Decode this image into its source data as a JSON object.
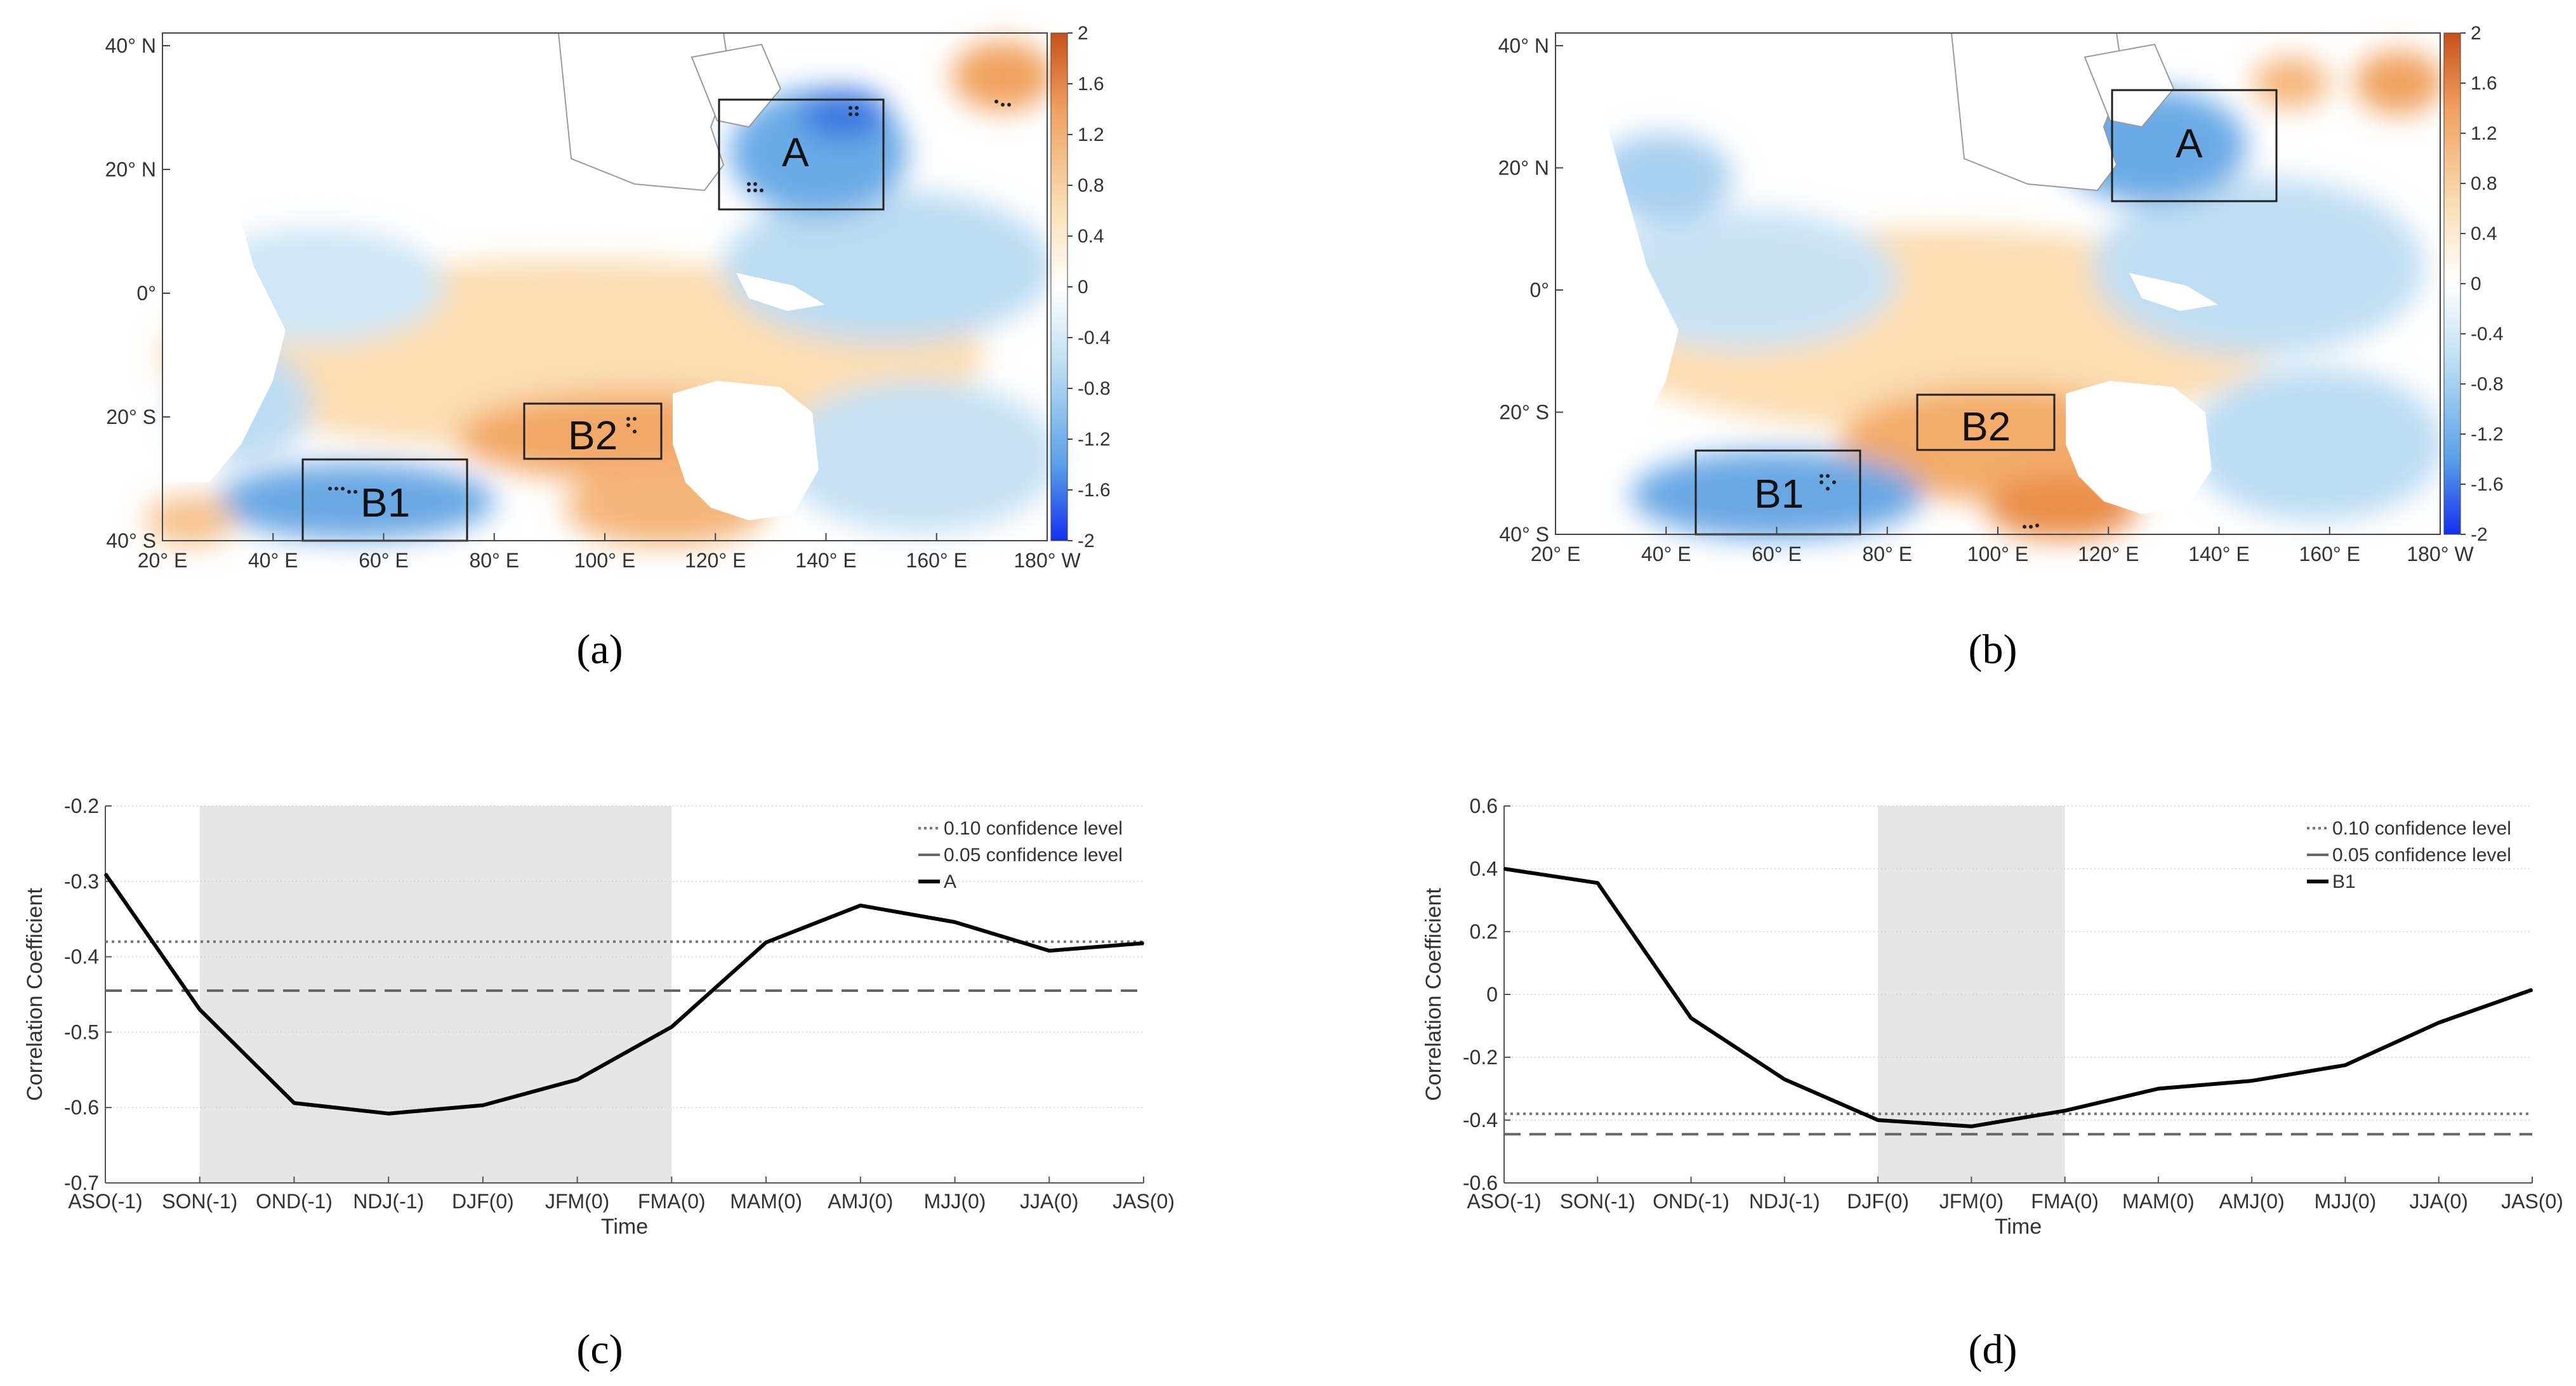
{
  "colors": {
    "line": "#000000",
    "shade": "#e6e6e6",
    "dotted": "#777777",
    "dashed": "#666666",
    "ocean_blue": "#5aa0e0",
    "ocean_orange": "#f4b070",
    "colorbar_low": "#1b3cf5",
    "colorbar_high": "#d8561a"
  },
  "maps": [
    {
      "id": "a",
      "panel_label": "(a)",
      "lon_ticks": [
        "20° E",
        "40° E",
        "60° E",
        "80° E",
        "100° E",
        "120° E",
        "140° E",
        "160° E",
        "180° W"
      ],
      "lat_ticks": [
        "40° N",
        "20° N",
        "0°",
        "20° S",
        "40° S"
      ],
      "colorbar_ticks": [
        "2",
        "1.6",
        "1.2",
        "0.8",
        "0.4",
        "0",
        "-0.4",
        "-0.8",
        "-1.2",
        "-1.6",
        "-2"
      ],
      "boxes": [
        {
          "label": "A",
          "lon": [
            120,
            150
          ],
          "lat": [
            20,
            40
          ]
        },
        {
          "label": "B2",
          "lon": [
            85,
            110
          ],
          "lat": [
            -25,
            -16
          ]
        },
        {
          "label": "B1",
          "lon": [
            45,
            75
          ],
          "lat": [
            -40,
            -25
          ]
        }
      ]
    },
    {
      "id": "b",
      "panel_label": "(b)",
      "lon_ticks": [
        "20° E",
        "40° E",
        "60° E",
        "80° E",
        "100° E",
        "120° E",
        "140° E",
        "160° E",
        "180° W"
      ],
      "lat_ticks": [
        "40° N",
        "20° N",
        "0°",
        "20° S",
        "40° S"
      ],
      "colorbar_ticks": [
        "2",
        "1.6",
        "1.2",
        "0.8",
        "0.4",
        "0",
        "-0.4",
        "-0.8",
        "-1.2",
        "-1.6",
        "-2"
      ],
      "boxes": [
        {
          "label": "A",
          "lon": [
            120,
            150
          ],
          "lat": [
            20,
            40
          ]
        },
        {
          "label": "B2",
          "lon": [
            85,
            110
          ],
          "lat": [
            -25,
            -16
          ]
        },
        {
          "label": "B1",
          "lon": [
            45,
            75
          ],
          "lat": [
            -40,
            -25
          ]
        }
      ]
    }
  ],
  "chart_data": [
    {
      "id": "c",
      "type": "line",
      "panel_label": "(c)",
      "xlabel": "Time",
      "ylabel": "Correlation Coefficient",
      "categories": [
        "ASO(-1)",
        "SON(-1)",
        "OND(-1)",
        "NDJ(-1)",
        "DJF(0)",
        "JFM(0)",
        "FMA(0)",
        "MAM(0)",
        "AMJ(0)",
        "MJJ(0)",
        "JJA(0)",
        "JAS(0)"
      ],
      "ylim": [
        -0.7,
        -0.2
      ],
      "yticks": [
        "-0.2",
        "-0.3",
        "-0.4",
        "-0.5",
        "-0.6",
        "-0.7"
      ],
      "ytick_values": [
        -0.2,
        -0.3,
        -0.4,
        -0.5,
        -0.6,
        -0.7
      ],
      "grid": true,
      "shaded_range": [
        1,
        6
      ],
      "reference_lines": [
        {
          "name": "0.10 confidence level",
          "value": -0.38,
          "style": "dotted"
        },
        {
          "name": "0.05 confidence level",
          "value": -0.445,
          "style": "dashed"
        }
      ],
      "series": [
        {
          "name": "A",
          "values": [
            -0.29,
            -0.47,
            -0.594,
            -0.608,
            -0.597,
            -0.563,
            -0.493,
            -0.381,
            -0.332,
            -0.354,
            -0.392,
            -0.382
          ]
        }
      ],
      "legend_placement": "top-right"
    },
    {
      "id": "d",
      "type": "line",
      "panel_label": "(d)",
      "xlabel": "Time",
      "ylabel": "Correlation Coefficient",
      "categories": [
        "ASO(-1)",
        "SON(-1)",
        "OND(-1)",
        "NDJ(-1)",
        "DJF(0)",
        "JFM(0)",
        "FMA(0)",
        "MAM(0)",
        "AMJ(0)",
        "MJJ(0)",
        "JJA(0)",
        "JAS(0)"
      ],
      "ylim": [
        -0.6,
        0.6
      ],
      "yticks": [
        "0.6",
        "0.4",
        "0.2",
        "0",
        "-0.2",
        "-0.4",
        "-0.6"
      ],
      "ytick_values": [
        0.6,
        0.4,
        0.2,
        0,
        -0.2,
        -0.4,
        -0.6
      ],
      "grid": true,
      "shaded_range": [
        4,
        6
      ],
      "reference_lines": [
        {
          "name": "0.10 confidence level",
          "value": -0.38,
          "style": "dotted"
        },
        {
          "name": "0.05 confidence level",
          "value": -0.445,
          "style": "dashed"
        }
      ],
      "series": [
        {
          "name": "B1",
          "values": [
            0.4,
            0.355,
            -0.075,
            -0.27,
            -0.4,
            -0.42,
            -0.37,
            -0.3,
            -0.275,
            -0.225,
            -0.09,
            0.015
          ]
        }
      ],
      "legend_placement": "top-right"
    }
  ]
}
